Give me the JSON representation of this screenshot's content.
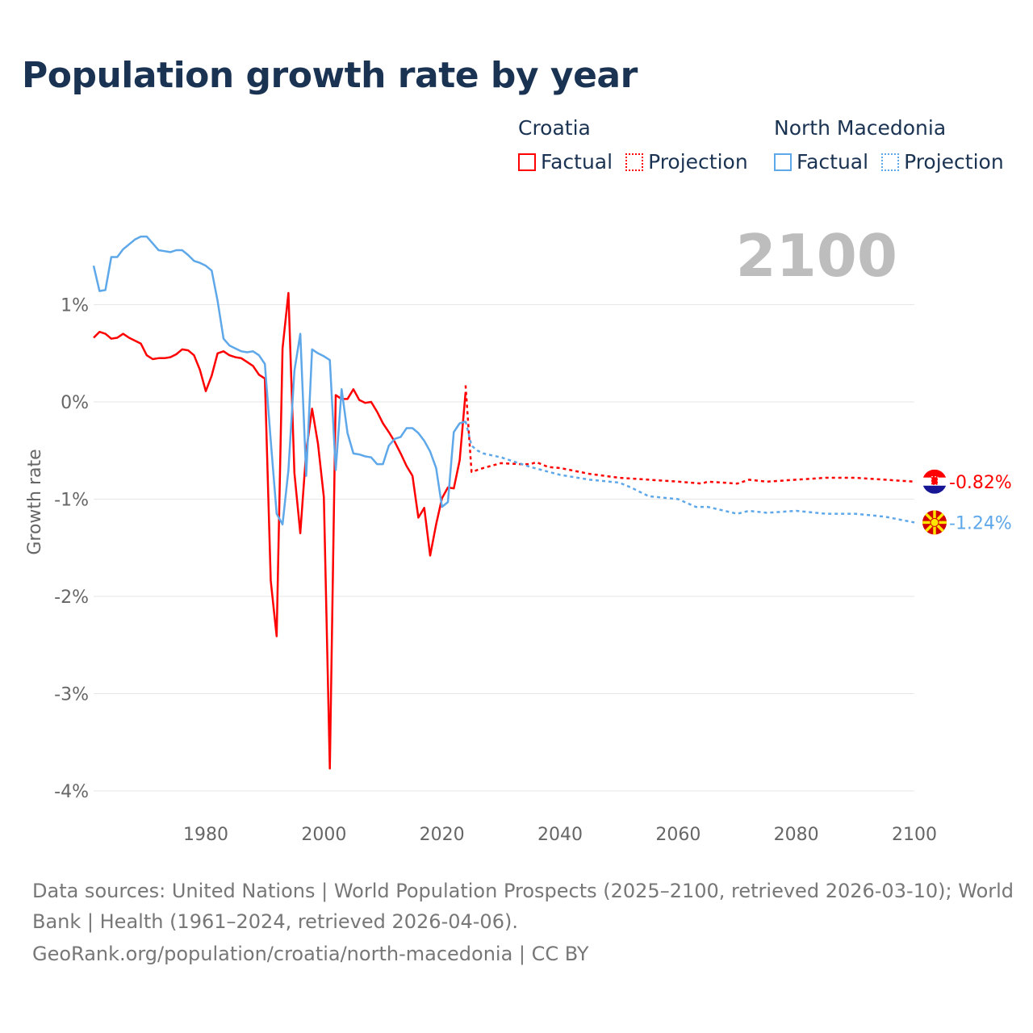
{
  "title": "Population growth rate by year",
  "legend": {
    "groups": [
      {
        "name": "Croatia",
        "factual": "Factual",
        "projection": "Projection",
        "color": "#ff0000"
      },
      {
        "name": "North Macedonia",
        "factual": "Factual",
        "projection": "Projection",
        "color": "#5ea8ea"
      }
    ]
  },
  "year_watermark": "2100",
  "footer": {
    "line1": "Data sources: United Nations | World Population Prospects (2025–2100, retrieved 2026-03-10); World",
    "line2": "Bank | Health (1961–2024, retrieved 2026-04-06).",
    "line3": "GeoRank.org/population/croatia/north-macedonia | CC BY"
  },
  "chart_data": {
    "type": "line",
    "title": "Population growth rate by year",
    "xlabel": "",
    "ylabel": "Growth rate",
    "xlim": [
      1961,
      2100
    ],
    "ylim": [
      -4.15,
      1.95
    ],
    "xticks": [
      1980,
      2000,
      2020,
      2040,
      2060,
      2080,
      2100
    ],
    "xtick_labels": [
      "1980",
      "2000",
      "2020",
      "2040",
      "2060",
      "2080",
      "2100"
    ],
    "yticks": [
      1,
      0,
      -1,
      -2,
      -3,
      -4
    ],
    "ytick_labels": [
      "1%",
      "0%",
      "-1%",
      "-2%",
      "-3%",
      "-4%"
    ],
    "grid": true,
    "legend_position": "top-right",
    "series": [
      {
        "name": "Croatia Factual",
        "color": "#ff0000",
        "style": "solid",
        "x": [
          1961,
          1962,
          1963,
          1964,
          1965,
          1966,
          1967,
          1968,
          1969,
          1970,
          1971,
          1972,
          1973,
          1974,
          1975,
          1976,
          1977,
          1978,
          1979,
          1980,
          1981,
          1982,
          1983,
          1984,
          1985,
          1986,
          1987,
          1988,
          1989,
          1990,
          1991,
          1992,
          1993,
          1994,
          1995,
          1996,
          1997,
          1998,
          1999,
          2000,
          2001,
          2002,
          2003,
          2004,
          2005,
          2006,
          2007,
          2008,
          2009,
          2010,
          2011,
          2012,
          2013,
          2014,
          2015,
          2016,
          2017,
          2018,
          2019,
          2020,
          2021,
          2022,
          2023,
          2024
        ],
        "y": [
          0.66,
          0.72,
          0.7,
          0.65,
          0.66,
          0.7,
          0.66,
          0.63,
          0.6,
          0.48,
          0.44,
          0.45,
          0.45,
          0.46,
          0.49,
          0.54,
          0.53,
          0.48,
          0.33,
          0.11,
          0.27,
          0.5,
          0.52,
          0.48,
          0.46,
          0.45,
          0.41,
          0.37,
          0.28,
          0.24,
          -1.84,
          -2.41,
          0.55,
          1.12,
          -0.73,
          -1.35,
          -0.51,
          -0.07,
          -0.43,
          -0.98,
          -3.77,
          0.07,
          0.03,
          0.03,
          0.13,
          0.02,
          -0.01,
          0.0,
          -0.1,
          -0.22,
          -0.31,
          -0.41,
          -0.53,
          -0.66,
          -0.76,
          -1.19,
          -1.09,
          -1.58,
          -1.26,
          -0.99,
          -0.88,
          -0.89,
          -0.6,
          0.1
        ]
      },
      {
        "name": "Croatia Projection",
        "color": "#ff0000",
        "style": "dotted",
        "x": [
          2024,
          2025,
          2027,
          2030,
          2033,
          2035,
          2036,
          2038,
          2040,
          2045,
          2050,
          2055,
          2060,
          2064,
          2065,
          2070,
          2072,
          2075,
          2080,
          2085,
          2090,
          2095,
          2100
        ],
        "y": [
          0.17,
          -0.72,
          -0.68,
          -0.63,
          -0.64,
          -0.64,
          -0.62,
          -0.67,
          -0.68,
          -0.74,
          -0.78,
          -0.8,
          -0.82,
          -0.84,
          -0.82,
          -0.84,
          -0.8,
          -0.82,
          -0.8,
          -0.78,
          -0.78,
          -0.8,
          -0.82
        ]
      },
      {
        "name": "North Macedonia Factual",
        "color": "#5ea8ea",
        "style": "solid",
        "x": [
          1961,
          1962,
          1963,
          1964,
          1965,
          1966,
          1967,
          1968,
          1969,
          1970,
          1971,
          1972,
          1973,
          1974,
          1975,
          1976,
          1977,
          1978,
          1979,
          1980,
          1981,
          1982,
          1983,
          1984,
          1985,
          1986,
          1987,
          1988,
          1989,
          1990,
          1991,
          1992,
          1993,
          1994,
          1995,
          1996,
          1997,
          1998,
          1999,
          2000,
          2001,
          2002,
          2003,
          2004,
          2005,
          2006,
          2007,
          2008,
          2009,
          2010,
          2011,
          2012,
          2013,
          2014,
          2015,
          2016,
          2017,
          2018,
          2019,
          2020,
          2021,
          2022,
          2023,
          2024
        ],
        "y": [
          1.4,
          1.14,
          1.15,
          1.49,
          1.49,
          1.57,
          1.62,
          1.67,
          1.7,
          1.7,
          1.63,
          1.56,
          1.55,
          1.54,
          1.56,
          1.56,
          1.51,
          1.45,
          1.43,
          1.4,
          1.35,
          1.04,
          0.65,
          0.58,
          0.55,
          0.52,
          0.51,
          0.52,
          0.48,
          0.39,
          -0.4,
          -1.15,
          -1.26,
          -0.7,
          0.32,
          0.7,
          -0.76,
          0.54,
          0.5,
          0.47,
          0.43,
          -0.7,
          0.13,
          -0.32,
          -0.53,
          -0.54,
          -0.56,
          -0.57,
          -0.64,
          -0.64,
          -0.45,
          -0.38,
          -0.36,
          -0.27,
          -0.27,
          -0.32,
          -0.4,
          -0.51,
          -0.68,
          -1.08,
          -1.03,
          -0.31,
          -0.22,
          -0.2
        ]
      },
      {
        "name": "North Macedonia Projection",
        "color": "#5ea8ea",
        "style": "dotted",
        "x": [
          2024,
          2025,
          2026,
          2027,
          2030,
          2035,
          2040,
          2045,
          2050,
          2052,
          2055,
          2060,
          2063,
          2065,
          2070,
          2072,
          2075,
          2080,
          2085,
          2090,
          2095,
          2100
        ],
        "y": [
          -0.2,
          -0.45,
          -0.5,
          -0.53,
          -0.57,
          -0.67,
          -0.75,
          -0.8,
          -0.83,
          -0.88,
          -0.97,
          -1.0,
          -1.08,
          -1.08,
          -1.15,
          -1.12,
          -1.14,
          -1.12,
          -1.15,
          -1.15,
          -1.18,
          -1.24
        ]
      }
    ],
    "end_labels": [
      {
        "country": "Croatia",
        "value": -0.82,
        "label": "-0.82%",
        "color": "#ff0000"
      },
      {
        "country": "North Macedonia",
        "value": -1.24,
        "label": "-1.24%",
        "color": "#5ea8ea"
      }
    ]
  }
}
